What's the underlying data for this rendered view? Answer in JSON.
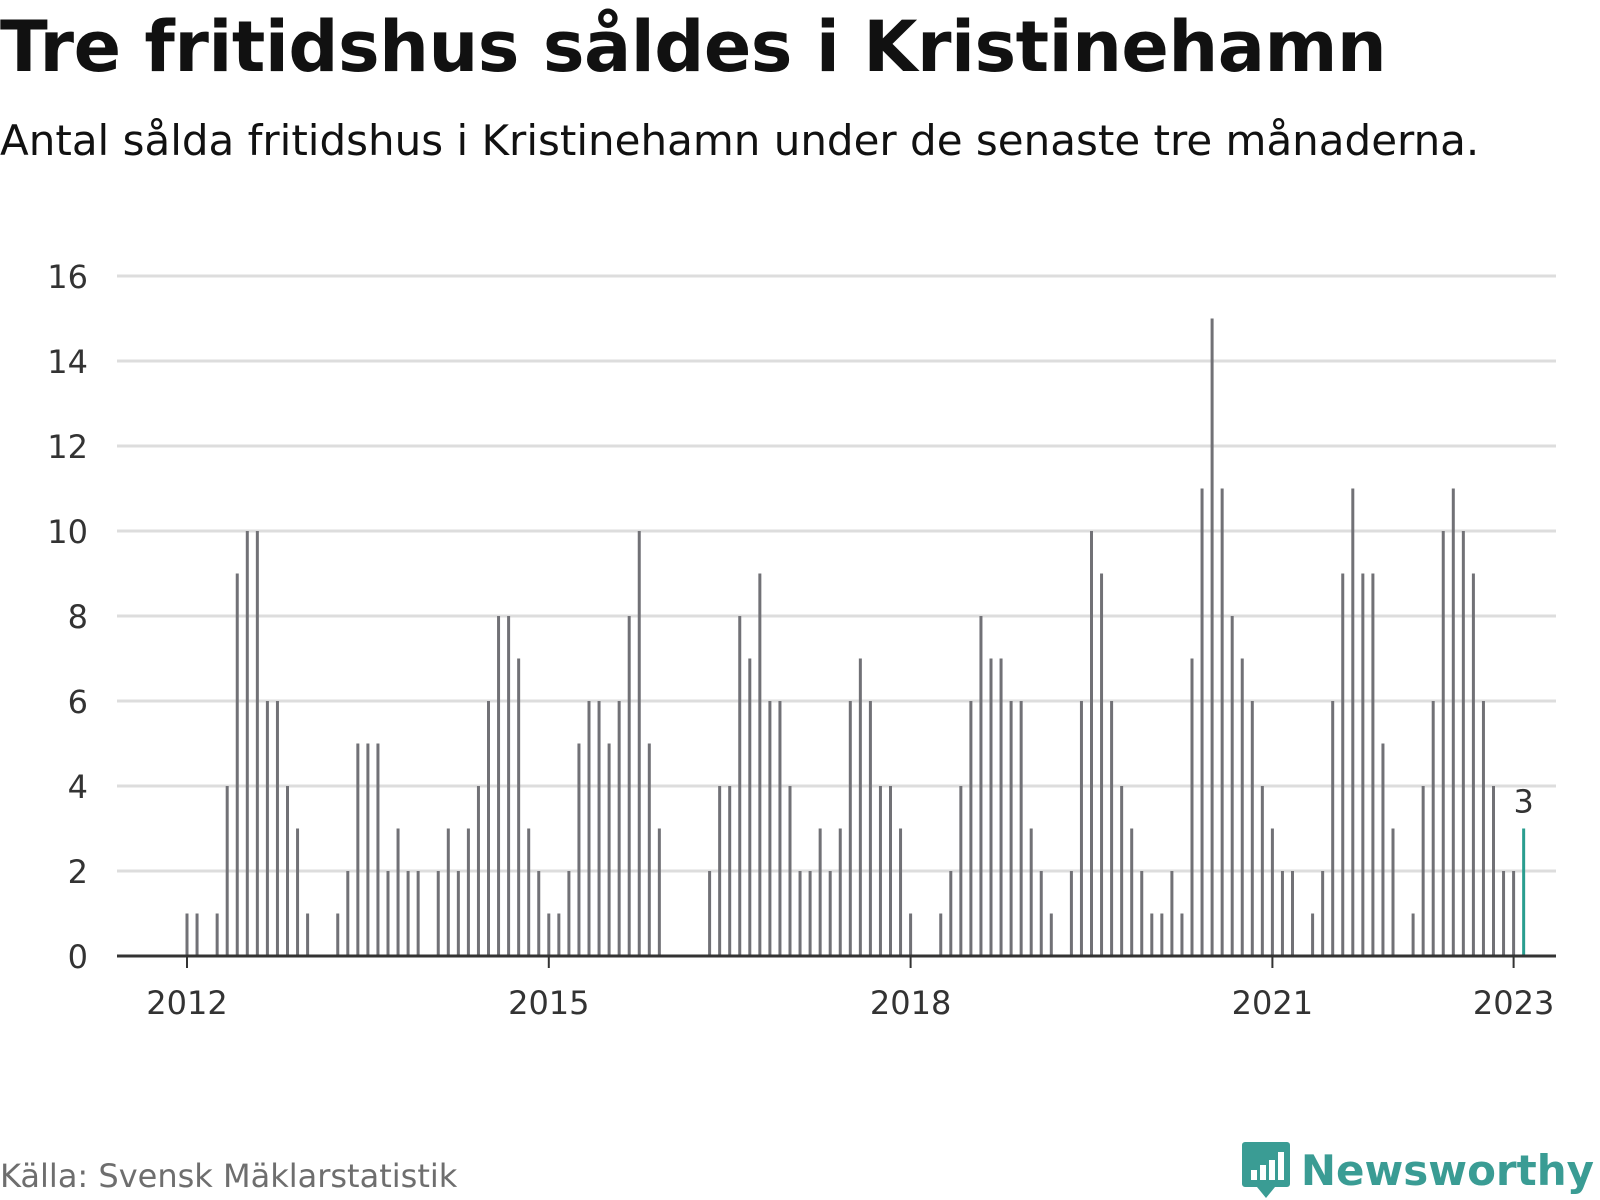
{
  "header": {
    "title": "Tre fritidshus såldes i Kristinehamn",
    "subtitle": "Antal sålda fritidshus i Kristinehamn under de senaste tre månaderna."
  },
  "footer": {
    "source": "Källa: Svensk Mäklarstatistik",
    "brand": "Newsworthy"
  },
  "colors": {
    "bar": "#717176",
    "highlight": "#2a9d8f",
    "grid": "#dddddd",
    "axis": "#333333",
    "brand": "#3a9c94"
  },
  "chart_data": {
    "type": "bar",
    "title": "Tre fritidshus såldes i Kristinehamn",
    "subtitle": "Antal sålda fritidshus i Kristinehamn under de senaste tre månaderna.",
    "xlabel": "",
    "ylabel": "",
    "ylim": [
      0,
      16
    ],
    "yticks": [
      0,
      2,
      4,
      6,
      8,
      10,
      12,
      14,
      16
    ],
    "xticks": [
      "2012",
      "2015",
      "2018",
      "2021",
      "2023"
    ],
    "grid": true,
    "start": "2012-01",
    "end": "2023-01",
    "values": [
      1,
      1,
      0,
      1,
      4,
      9,
      10,
      10,
      6,
      6,
      4,
      3,
      1,
      0,
      0,
      1,
      2,
      5,
      5,
      5,
      2,
      3,
      2,
      2,
      0,
      2,
      3,
      2,
      3,
      4,
      6,
      8,
      8,
      7,
      3,
      2,
      1,
      1,
      2,
      5,
      6,
      6,
      5,
      6,
      8,
      10,
      5,
      3,
      0,
      0,
      0,
      0,
      2,
      4,
      4,
      8,
      7,
      9,
      6,
      6,
      4,
      2,
      2,
      3,
      2,
      3,
      6,
      7,
      6,
      4,
      4,
      3,
      1,
      0,
      0,
      1,
      2,
      4,
      6,
      8,
      7,
      7,
      6,
      6,
      3,
      2,
      1,
      0,
      2,
      6,
      10,
      9,
      6,
      4,
      3,
      2,
      1,
      1,
      2,
      1,
      7,
      11,
      15,
      11,
      8,
      7,
      6,
      4,
      3,
      2,
      2,
      0,
      1,
      2,
      6,
      9,
      11,
      9,
      9,
      5,
      3,
      0,
      1,
      4,
      6,
      10,
      11,
      10,
      9,
      6,
      4,
      2,
      2,
      3
    ],
    "highlight": {
      "label": "2023",
      "value": 3
    }
  }
}
